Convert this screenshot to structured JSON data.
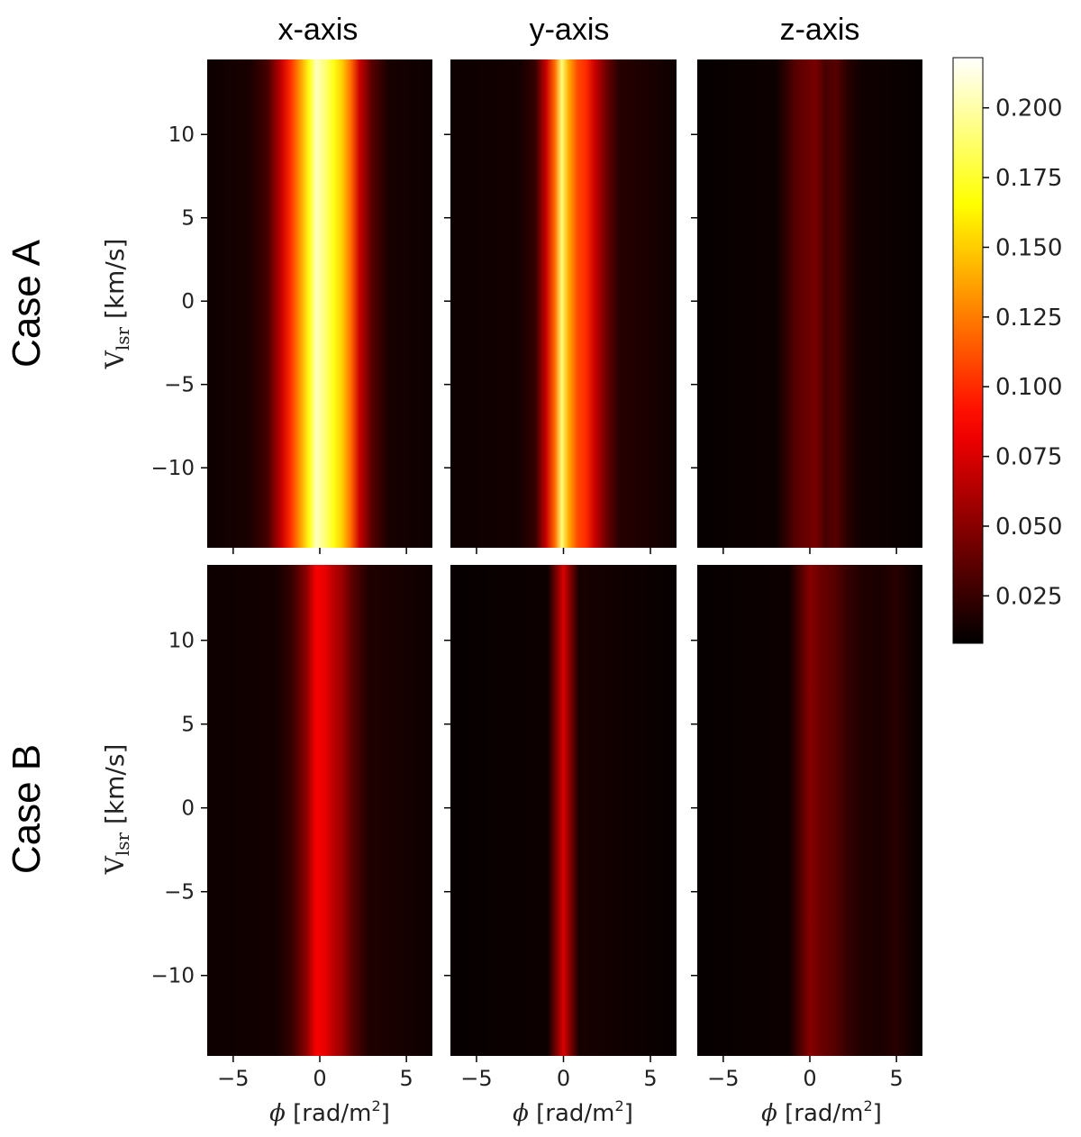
{
  "chart_data": {
    "type": "heatmap",
    "columns": [
      "x-axis",
      "y-axis",
      "z-axis"
    ],
    "rows": [
      "Case A",
      "Case B"
    ],
    "ylabel_main": "V",
    "ylabel_sub": "lsr",
    "ylabel_unit": " [km/s]",
    "xlabel_main": "ϕ",
    "xlabel_unit": " [rad/m",
    "xlabel_sup": "2",
    "xlabel_close": "]",
    "xlim": [
      -6.5,
      6.5
    ],
    "ylim": [
      -14.8,
      14.5
    ],
    "xticks": [
      -5,
      0,
      5
    ],
    "xtick_labels": [
      "−5",
      "0",
      "5"
    ],
    "yticks": [
      10,
      5,
      0,
      -5,
      -10
    ],
    "ytick_labels": [
      "10",
      "5",
      "0",
      "−5",
      "−10"
    ],
    "colorbar": {
      "range": [
        0.008,
        0.218
      ],
      "ticks": [
        0.025,
        0.05,
        0.075,
        0.1,
        0.125,
        0.15,
        0.175,
        0.2
      ],
      "tick_labels": [
        "0.025",
        "0.050",
        "0.075",
        "0.100",
        "0.125",
        "0.150",
        "0.175",
        "0.200"
      ],
      "colormap": "hot"
    },
    "panels": [
      {
        "row": "Case A",
        "column": "x-axis",
        "profile": [
          {
            "phi": -6.5,
            "value": 0.012
          },
          {
            "phi": -4.0,
            "value": 0.016
          },
          {
            "phi": -3.0,
            "value": 0.03
          },
          {
            "phi": -2.2,
            "value": 0.07
          },
          {
            "phi": -1.7,
            "value": 0.1
          },
          {
            "phi": -1.2,
            "value": 0.13
          },
          {
            "phi": -0.6,
            "value": 0.17
          },
          {
            "phi": -0.2,
            "value": 0.205
          },
          {
            "phi": 0.3,
            "value": 0.19
          },
          {
            "phi": 0.8,
            "value": 0.17
          },
          {
            "phi": 1.3,
            "value": 0.15
          },
          {
            "phi": 1.8,
            "value": 0.12
          },
          {
            "phi": 2.3,
            "value": 0.07
          },
          {
            "phi": 3.0,
            "value": 0.035
          },
          {
            "phi": 4.0,
            "value": 0.015
          },
          {
            "phi": 6.5,
            "value": 0.012
          }
        ]
      },
      {
        "row": "Case A",
        "column": "y-axis",
        "profile": [
          {
            "phi": -6.5,
            "value": 0.012
          },
          {
            "phi": -2.5,
            "value": 0.014
          },
          {
            "phi": -1.6,
            "value": 0.025
          },
          {
            "phi": -1.0,
            "value": 0.07
          },
          {
            "phi": -0.5,
            "value": 0.12
          },
          {
            "phi": -0.1,
            "value": 0.19
          },
          {
            "phi": 0.3,
            "value": 0.14
          },
          {
            "phi": 0.8,
            "value": 0.11
          },
          {
            "phi": 1.3,
            "value": 0.1
          },
          {
            "phi": 1.8,
            "value": 0.07
          },
          {
            "phi": 2.5,
            "value": 0.04
          },
          {
            "phi": 3.2,
            "value": 0.02
          },
          {
            "phi": 6.5,
            "value": 0.012
          }
        ]
      },
      {
        "row": "Case A",
        "column": "z-axis",
        "profile": [
          {
            "phi": -6.5,
            "value": 0.01
          },
          {
            "phi": -2.0,
            "value": 0.012
          },
          {
            "phi": -1.5,
            "value": 0.02
          },
          {
            "phi": -0.8,
            "value": 0.035
          },
          {
            "phi": -0.2,
            "value": 0.04
          },
          {
            "phi": 0.3,
            "value": 0.045
          },
          {
            "phi": 0.9,
            "value": 0.03
          },
          {
            "phi": 1.5,
            "value": 0.035
          },
          {
            "phi": 2.2,
            "value": 0.02
          },
          {
            "phi": 3.0,
            "value": 0.013
          },
          {
            "phi": 6.5,
            "value": 0.01
          }
        ]
      },
      {
        "row": "Case B",
        "column": "x-axis",
        "profile": [
          {
            "phi": -6.5,
            "value": 0.012
          },
          {
            "phi": -2.5,
            "value": 0.014
          },
          {
            "phi": -1.6,
            "value": 0.025
          },
          {
            "phi": -0.8,
            "value": 0.05
          },
          {
            "phi": -0.2,
            "value": 0.085
          },
          {
            "phi": 0.3,
            "value": 0.08
          },
          {
            "phi": 0.8,
            "value": 0.065
          },
          {
            "phi": 1.3,
            "value": 0.055
          },
          {
            "phi": 1.9,
            "value": 0.035
          },
          {
            "phi": 2.8,
            "value": 0.018
          },
          {
            "phi": 6.5,
            "value": 0.012
          }
        ]
      },
      {
        "row": "Case B",
        "column": "y-axis",
        "profile": [
          {
            "phi": -6.5,
            "value": 0.01
          },
          {
            "phi": -0.9,
            "value": 0.012
          },
          {
            "phi": -0.5,
            "value": 0.04
          },
          {
            "phi": 0.0,
            "value": 0.075
          },
          {
            "phi": 0.5,
            "value": 0.04
          },
          {
            "phi": 0.9,
            "value": 0.015
          },
          {
            "phi": 6.5,
            "value": 0.01
          }
        ]
      },
      {
        "row": "Case B",
        "column": "z-axis",
        "profile": [
          {
            "phi": -6.5,
            "value": 0.01
          },
          {
            "phi": -1.2,
            "value": 0.012
          },
          {
            "phi": -0.6,
            "value": 0.03
          },
          {
            "phi": 0.0,
            "value": 0.05
          },
          {
            "phi": 0.7,
            "value": 0.04
          },
          {
            "phi": 1.4,
            "value": 0.035
          },
          {
            "phi": 2.1,
            "value": 0.025
          },
          {
            "phi": 3.0,
            "value": 0.018
          },
          {
            "phi": 4.0,
            "value": 0.016
          },
          {
            "phi": 5.0,
            "value": 0.02
          },
          {
            "phi": 5.8,
            "value": 0.014
          },
          {
            "phi": 6.5,
            "value": 0.01
          }
        ]
      }
    ]
  }
}
